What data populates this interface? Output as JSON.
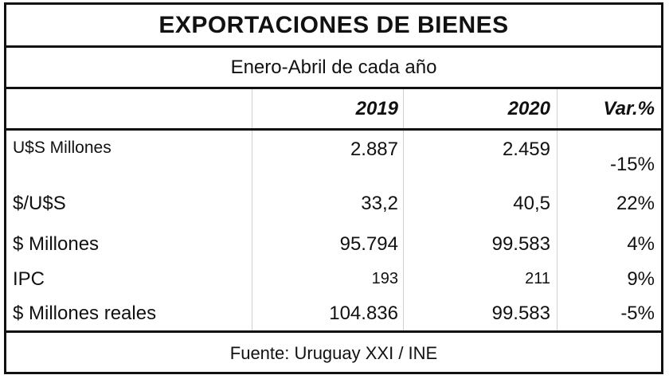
{
  "title": "EXPORTACIONES DE BIENES",
  "subtitle": "Enero-Abril de cada año",
  "columns": [
    "",
    "2019",
    "2020",
    "Var.%"
  ],
  "rows": [
    {
      "label": "U$S Millones",
      "v2019": "2.887",
      "v2020": "2.459",
      "var": "-15%"
    },
    {
      "label": "$/U$S",
      "v2019": "33,2",
      "v2020": "40,5",
      "var": "22%"
    },
    {
      "label": "$ Millones",
      "v2019": "95.794",
      "v2020": "99.583",
      "var": "4%"
    },
    {
      "label": "IPC",
      "v2019": "193",
      "v2020": "211",
      "var": "9%"
    },
    {
      "label": "$ Millones reales",
      "v2019": "104.836",
      "v2020": "99.583",
      "var": "-5%"
    }
  ],
  "footer": "Fuente: Uruguay XXI / INE"
}
